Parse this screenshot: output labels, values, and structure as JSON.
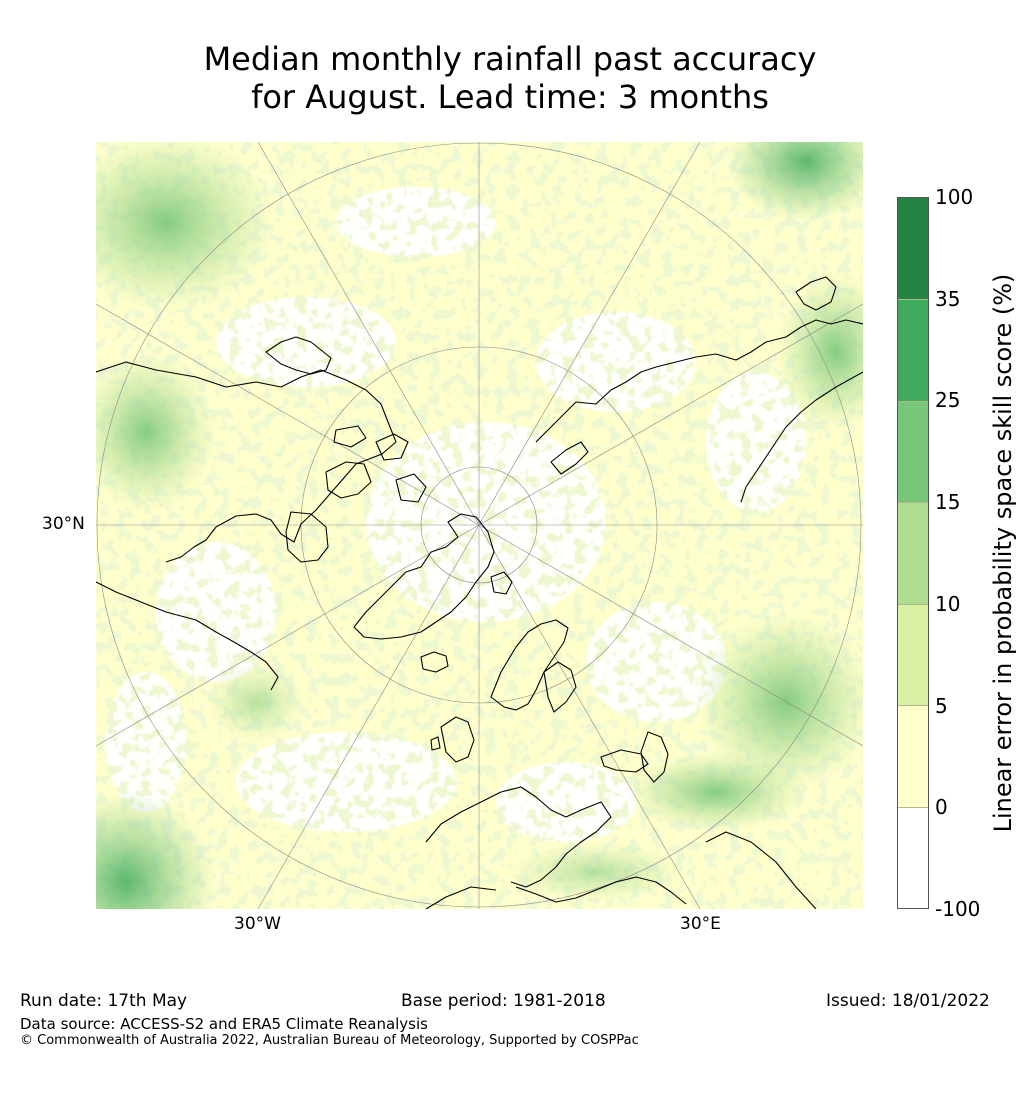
{
  "title": {
    "line1": "Median monthly rainfall past accuracy",
    "line2": "for August. Lead time: 3 months"
  },
  "map": {
    "projection": "north-polar-stereographic",
    "lat_label": "30°N",
    "lon_labels": {
      "west": "30°W",
      "east": "30°E"
    }
  },
  "colorbar": {
    "label": "Linear error in probability space skill score (%)",
    "ticks": [
      "100",
      "35",
      "25",
      "15",
      "10",
      "5",
      "0",
      "-100"
    ],
    "bins": [
      {
        "from": "35",
        "to": "100",
        "color": "#238443"
      },
      {
        "from": "25",
        "to": "35",
        "color": "#41ab5d"
      },
      {
        "from": "15",
        "to": "25",
        "color": "#78c679"
      },
      {
        "from": "10",
        "to": "15",
        "color": "#addd8e"
      },
      {
        "from": "5",
        "to": "10",
        "color": "#d9f0a3"
      },
      {
        "from": "0",
        "to": "5",
        "color": "#ffffcc"
      },
      {
        "from": "-100",
        "to": "0",
        "color": "#ffffff"
      }
    ]
  },
  "footer": {
    "run_date": "Run date: 17th May",
    "base_period": "Base period: 1981-2018",
    "issued": "Issued: 18/01/2022",
    "data_source": "Data source: ACCESS-S2 and ERA5 Climate Reanalysis",
    "copyright": "© Commonwealth of Australia 2022, Australian Bureau of Meteorology, Supported by COSPPac"
  }
}
